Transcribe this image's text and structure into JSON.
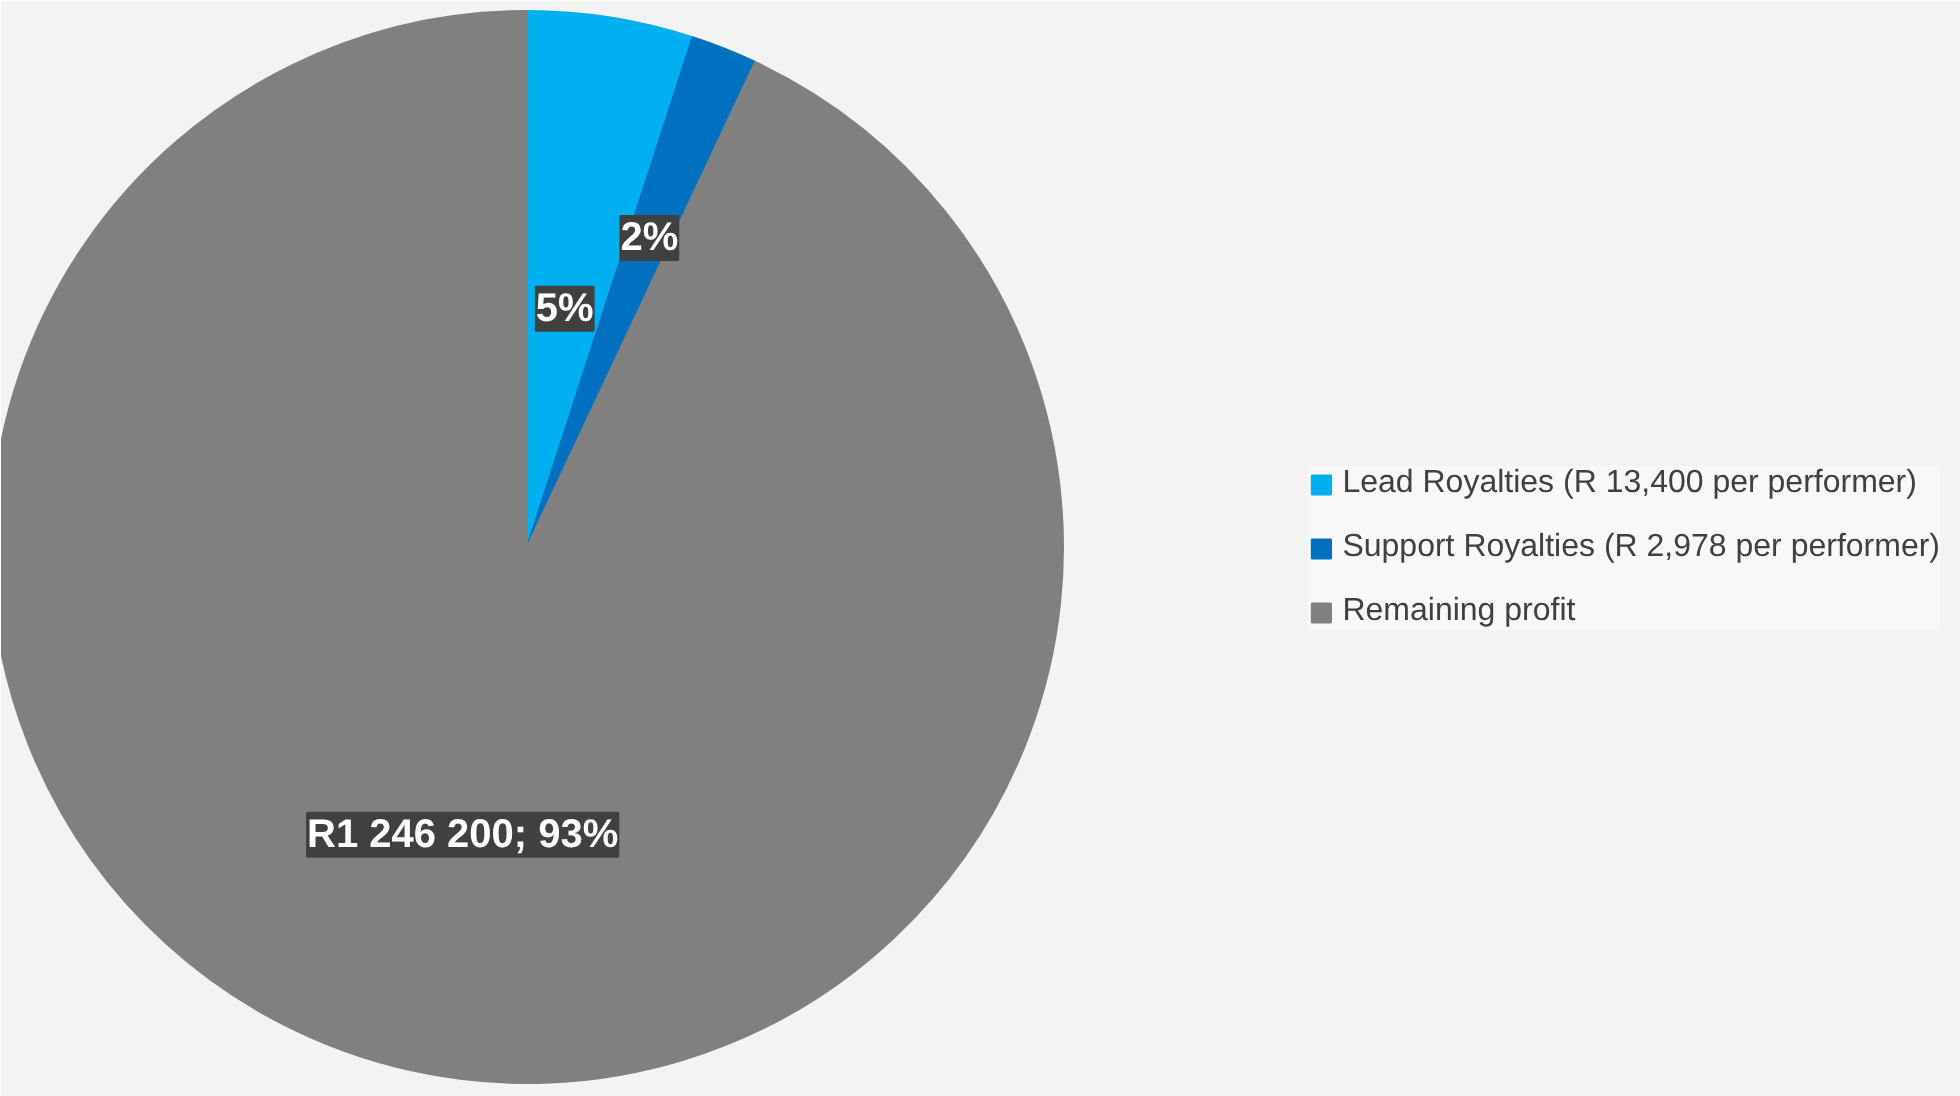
{
  "chart_data": {
    "type": "pie",
    "categories": [
      "Lead Royalties (R 13,400 per performer)",
      "Support Royalties (R 2,978 per performer)",
      "Remaining profit"
    ],
    "values": [
      5,
      2,
      93
    ],
    "colors": [
      "#00b0f0",
      "#0070c0",
      "#808080"
    ],
    "value_labels": [
      "5%",
      "2%",
      "R1 246 200; 93%"
    ],
    "legend": "right"
  }
}
